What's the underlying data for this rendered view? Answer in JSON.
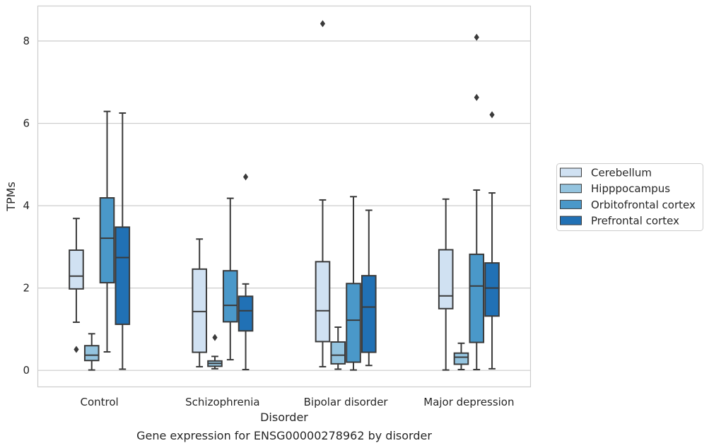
{
  "chart_data": {
    "type": "box",
    "xlabel": "Disorder",
    "ylabel": "TPMs",
    "caption": "Gene expression for ENSG00000278962 by disorder",
    "ylim": [
      -0.4,
      8.85
    ],
    "yticks": [
      0,
      2,
      4,
      6,
      8
    ],
    "grid": "horizontal",
    "legend_position": "right",
    "categories": [
      "Control",
      "Schizophrenia",
      "Bipolar disorder",
      "Major depression"
    ],
    "series": [
      {
        "name": "Cerebellum",
        "color": "#d0e1f2",
        "boxes": [
          {
            "whisker_low": 1.17,
            "q1": 1.98,
            "median": 2.29,
            "q3": 2.92,
            "whisker_high": 3.69,
            "outliers": [
              0.51
            ]
          },
          {
            "whisker_low": 0.09,
            "q1": 0.44,
            "median": 1.43,
            "q3": 2.46,
            "whisker_high": 3.19,
            "outliers": []
          },
          {
            "whisker_low": 0.09,
            "q1": 0.7,
            "median": 1.45,
            "q3": 2.64,
            "whisker_high": 4.14,
            "outliers": [
              8.42
            ]
          },
          {
            "whisker_low": 0.01,
            "q1": 1.5,
            "median": 1.81,
            "q3": 2.93,
            "whisker_high": 4.16,
            "outliers": []
          }
        ]
      },
      {
        "name": "Hipppocampus",
        "color": "#94c4df",
        "boxes": [
          {
            "whisker_low": 0.01,
            "q1": 0.24,
            "median": 0.37,
            "q3": 0.6,
            "whisker_high": 0.89,
            "outliers": []
          },
          {
            "whisker_low": 0.04,
            "q1": 0.1,
            "median": 0.17,
            "q3": 0.23,
            "whisker_high": 0.34,
            "outliers": [
              0.8
            ]
          },
          {
            "whisker_low": 0.03,
            "q1": 0.16,
            "median": 0.37,
            "q3": 0.69,
            "whisker_high": 1.05,
            "outliers": []
          },
          {
            "whisker_low": 0.02,
            "q1": 0.15,
            "median": 0.32,
            "q3": 0.42,
            "whisker_high": 0.66,
            "outliers": []
          }
        ]
      },
      {
        "name": "Orbitofrontal cortex",
        "color": "#4a98c9",
        "boxes": [
          {
            "whisker_low": 0.45,
            "q1": 2.13,
            "median": 3.21,
            "q3": 4.19,
            "whisker_high": 6.29,
            "outliers": []
          },
          {
            "whisker_low": 0.26,
            "q1": 1.18,
            "median": 1.58,
            "q3": 2.42,
            "whisker_high": 4.18,
            "outliers": []
          },
          {
            "whisker_low": 0.01,
            "q1": 0.2,
            "median": 1.22,
            "q3": 2.11,
            "whisker_high": 4.22,
            "outliers": []
          },
          {
            "whisker_low": 0.02,
            "q1": 0.68,
            "median": 2.05,
            "q3": 2.82,
            "whisker_high": 4.38,
            "outliers": [
              6.63,
              8.09
            ]
          }
        ]
      },
      {
        "name": "Prefrontal cortex",
        "color": "#2171b5",
        "boxes": [
          {
            "whisker_low": 0.03,
            "q1": 1.12,
            "median": 2.74,
            "q3": 3.48,
            "whisker_high": 6.25,
            "outliers": []
          },
          {
            "whisker_low": 0.02,
            "q1": 0.96,
            "median": 1.45,
            "q3": 1.8,
            "whisker_high": 2.1,
            "outliers": [
              4.7
            ]
          },
          {
            "whisker_low": 0.12,
            "q1": 0.44,
            "median": 1.54,
            "q3": 2.3,
            "whisker_high": 3.89,
            "outliers": []
          },
          {
            "whisker_low": 0.04,
            "q1": 1.32,
            "median": 2.0,
            "q3": 2.61,
            "whisker_high": 4.31,
            "outliers": [
              6.21
            ]
          }
        ]
      }
    ]
  },
  "colors": {
    "grid": "#cccccc",
    "frame": "#cccccc",
    "line": "#3a3a3a",
    "text": "#262626"
  }
}
